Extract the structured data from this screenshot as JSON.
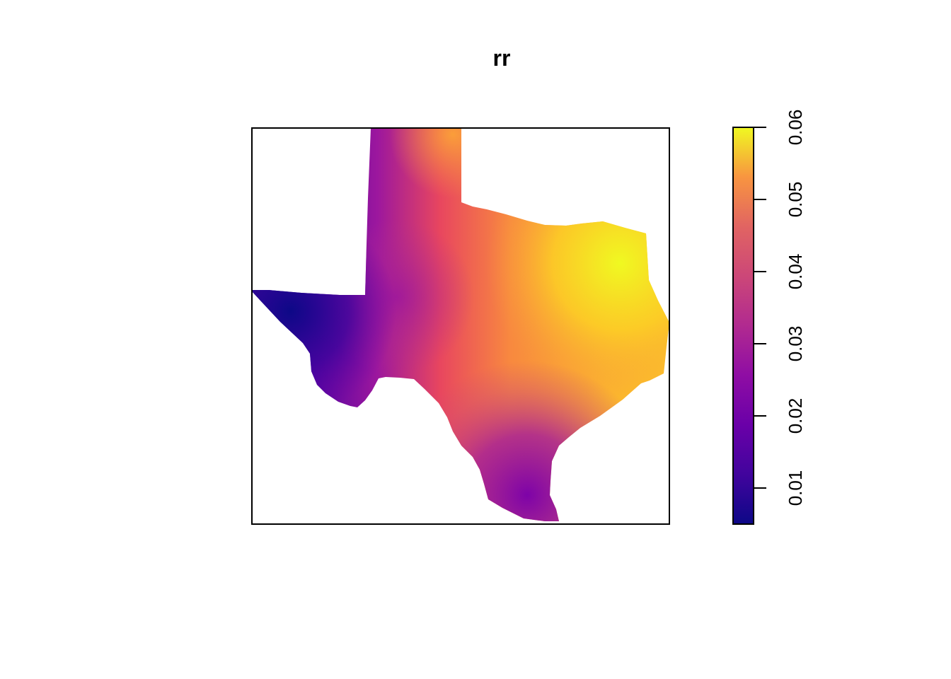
{
  "title": "rr",
  "map": {
    "region": "Texas",
    "variable": "rr",
    "palette": "plasma",
    "palette_stops": [
      "#0d0887",
      "#7e03a8",
      "#cc4778",
      "#f89540",
      "#f0f921"
    ],
    "value_range": [
      0.005,
      0.06
    ],
    "lowest_values": "far west (El Paso area)",
    "highest_values": "northeast Texas"
  },
  "legend": {
    "type": "continuous colorbar",
    "placement": "right",
    "ticks": [
      {
        "value": 0.01,
        "label": "0.01"
      },
      {
        "value": 0.02,
        "label": "0.02"
      },
      {
        "value": 0.03,
        "label": "0.03"
      },
      {
        "value": 0.04,
        "label": "0.04"
      },
      {
        "value": 0.05,
        "label": "0.05"
      },
      {
        "value": 0.06,
        "label": "0.06"
      }
    ]
  }
}
